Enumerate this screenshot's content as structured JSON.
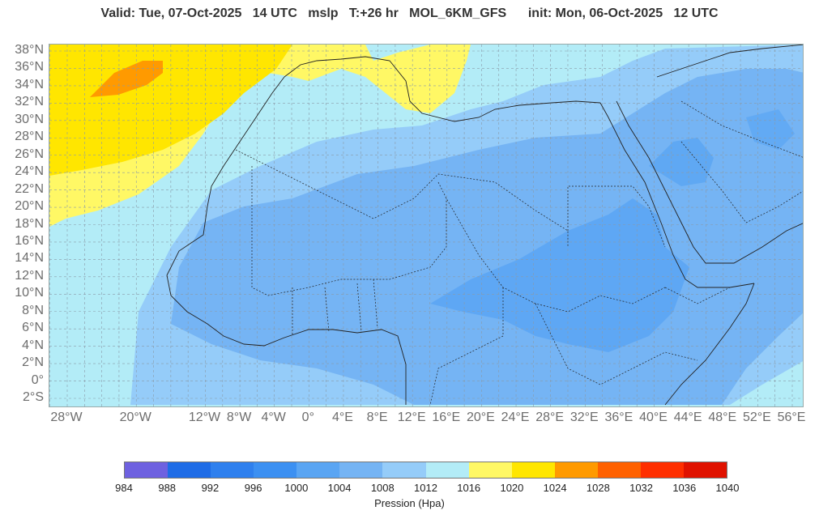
{
  "header": {
    "valid_label": "Valid: Tue, 07-Oct-2025",
    "valid_hour": "14 UTC",
    "field": "mslp",
    "lead": "T:+26 hr",
    "model": "MOL_6KM_GFS",
    "init_label": "init: Mon, 06-Oct-2025",
    "init_hour": "12 UTC"
  },
  "map": {
    "region": "North Africa and Arabian Peninsula",
    "lon_range": [
      -30,
      57
    ],
    "lat_range": [
      -3,
      39
    ],
    "lat_labels": [
      "38°N",
      "36°N",
      "34°N",
      "32°N",
      "30°N",
      "28°N",
      "26°N",
      "24°N",
      "22°N",
      "20°N",
      "18°N",
      "16°N",
      "14°N",
      "12°N",
      "10°N",
      "8°N",
      "6°N",
      "4°N",
      "2°N",
      "0°",
      "2°S"
    ],
    "lon_labels": [
      "28°W",
      "20°W",
      "12°W",
      "8°W",
      "4°W",
      "0°",
      "4°E",
      "8°E",
      "12°E",
      "16°E",
      "20°E",
      "24°E",
      "28°E",
      "32°E",
      "36°E",
      "40°E",
      "44°E",
      "48°E",
      "52°E",
      "56°E"
    ],
    "pressure_zones": [
      {
        "band": "1020-1024 hPa",
        "location": "Atlantic west of Morocco",
        "color": "#ffe600"
      },
      {
        "band": "1024-1028 hPa",
        "location": "Atlantic near 35°N 20°W",
        "color": "#ff9a00"
      },
      {
        "band": "1016-1020 hPa",
        "location": "Atlantic coast, western Mediterranean, Tunisia",
        "color": "#fff865"
      },
      {
        "band": "1008-1012 hPa",
        "location": "Sahara, Arabia",
        "color": "#95ccf9"
      },
      {
        "band": "1004-1008 hPa",
        "location": "Sahel, Sudan, Ethiopia",
        "color": "#75b4f4"
      }
    ]
  },
  "legend": {
    "title": "Pression (Hpa)",
    "ticks": [
      "984",
      "988",
      "992",
      "996",
      "1000",
      "1004",
      "1008",
      "1012",
      "1016",
      "1020",
      "1024",
      "1028",
      "1032",
      "1036",
      "1040"
    ],
    "colors": [
      "#6e61e0",
      "#1f6ce6",
      "#2f80ee",
      "#3c90f2",
      "#5aa5f3",
      "#75b4f4",
      "#95ccf9",
      "#b3ecf7",
      "#fff865",
      "#ffe600",
      "#ff9a00",
      "#ff6100",
      "#ff2f00",
      "#e01200"
    ]
  }
}
